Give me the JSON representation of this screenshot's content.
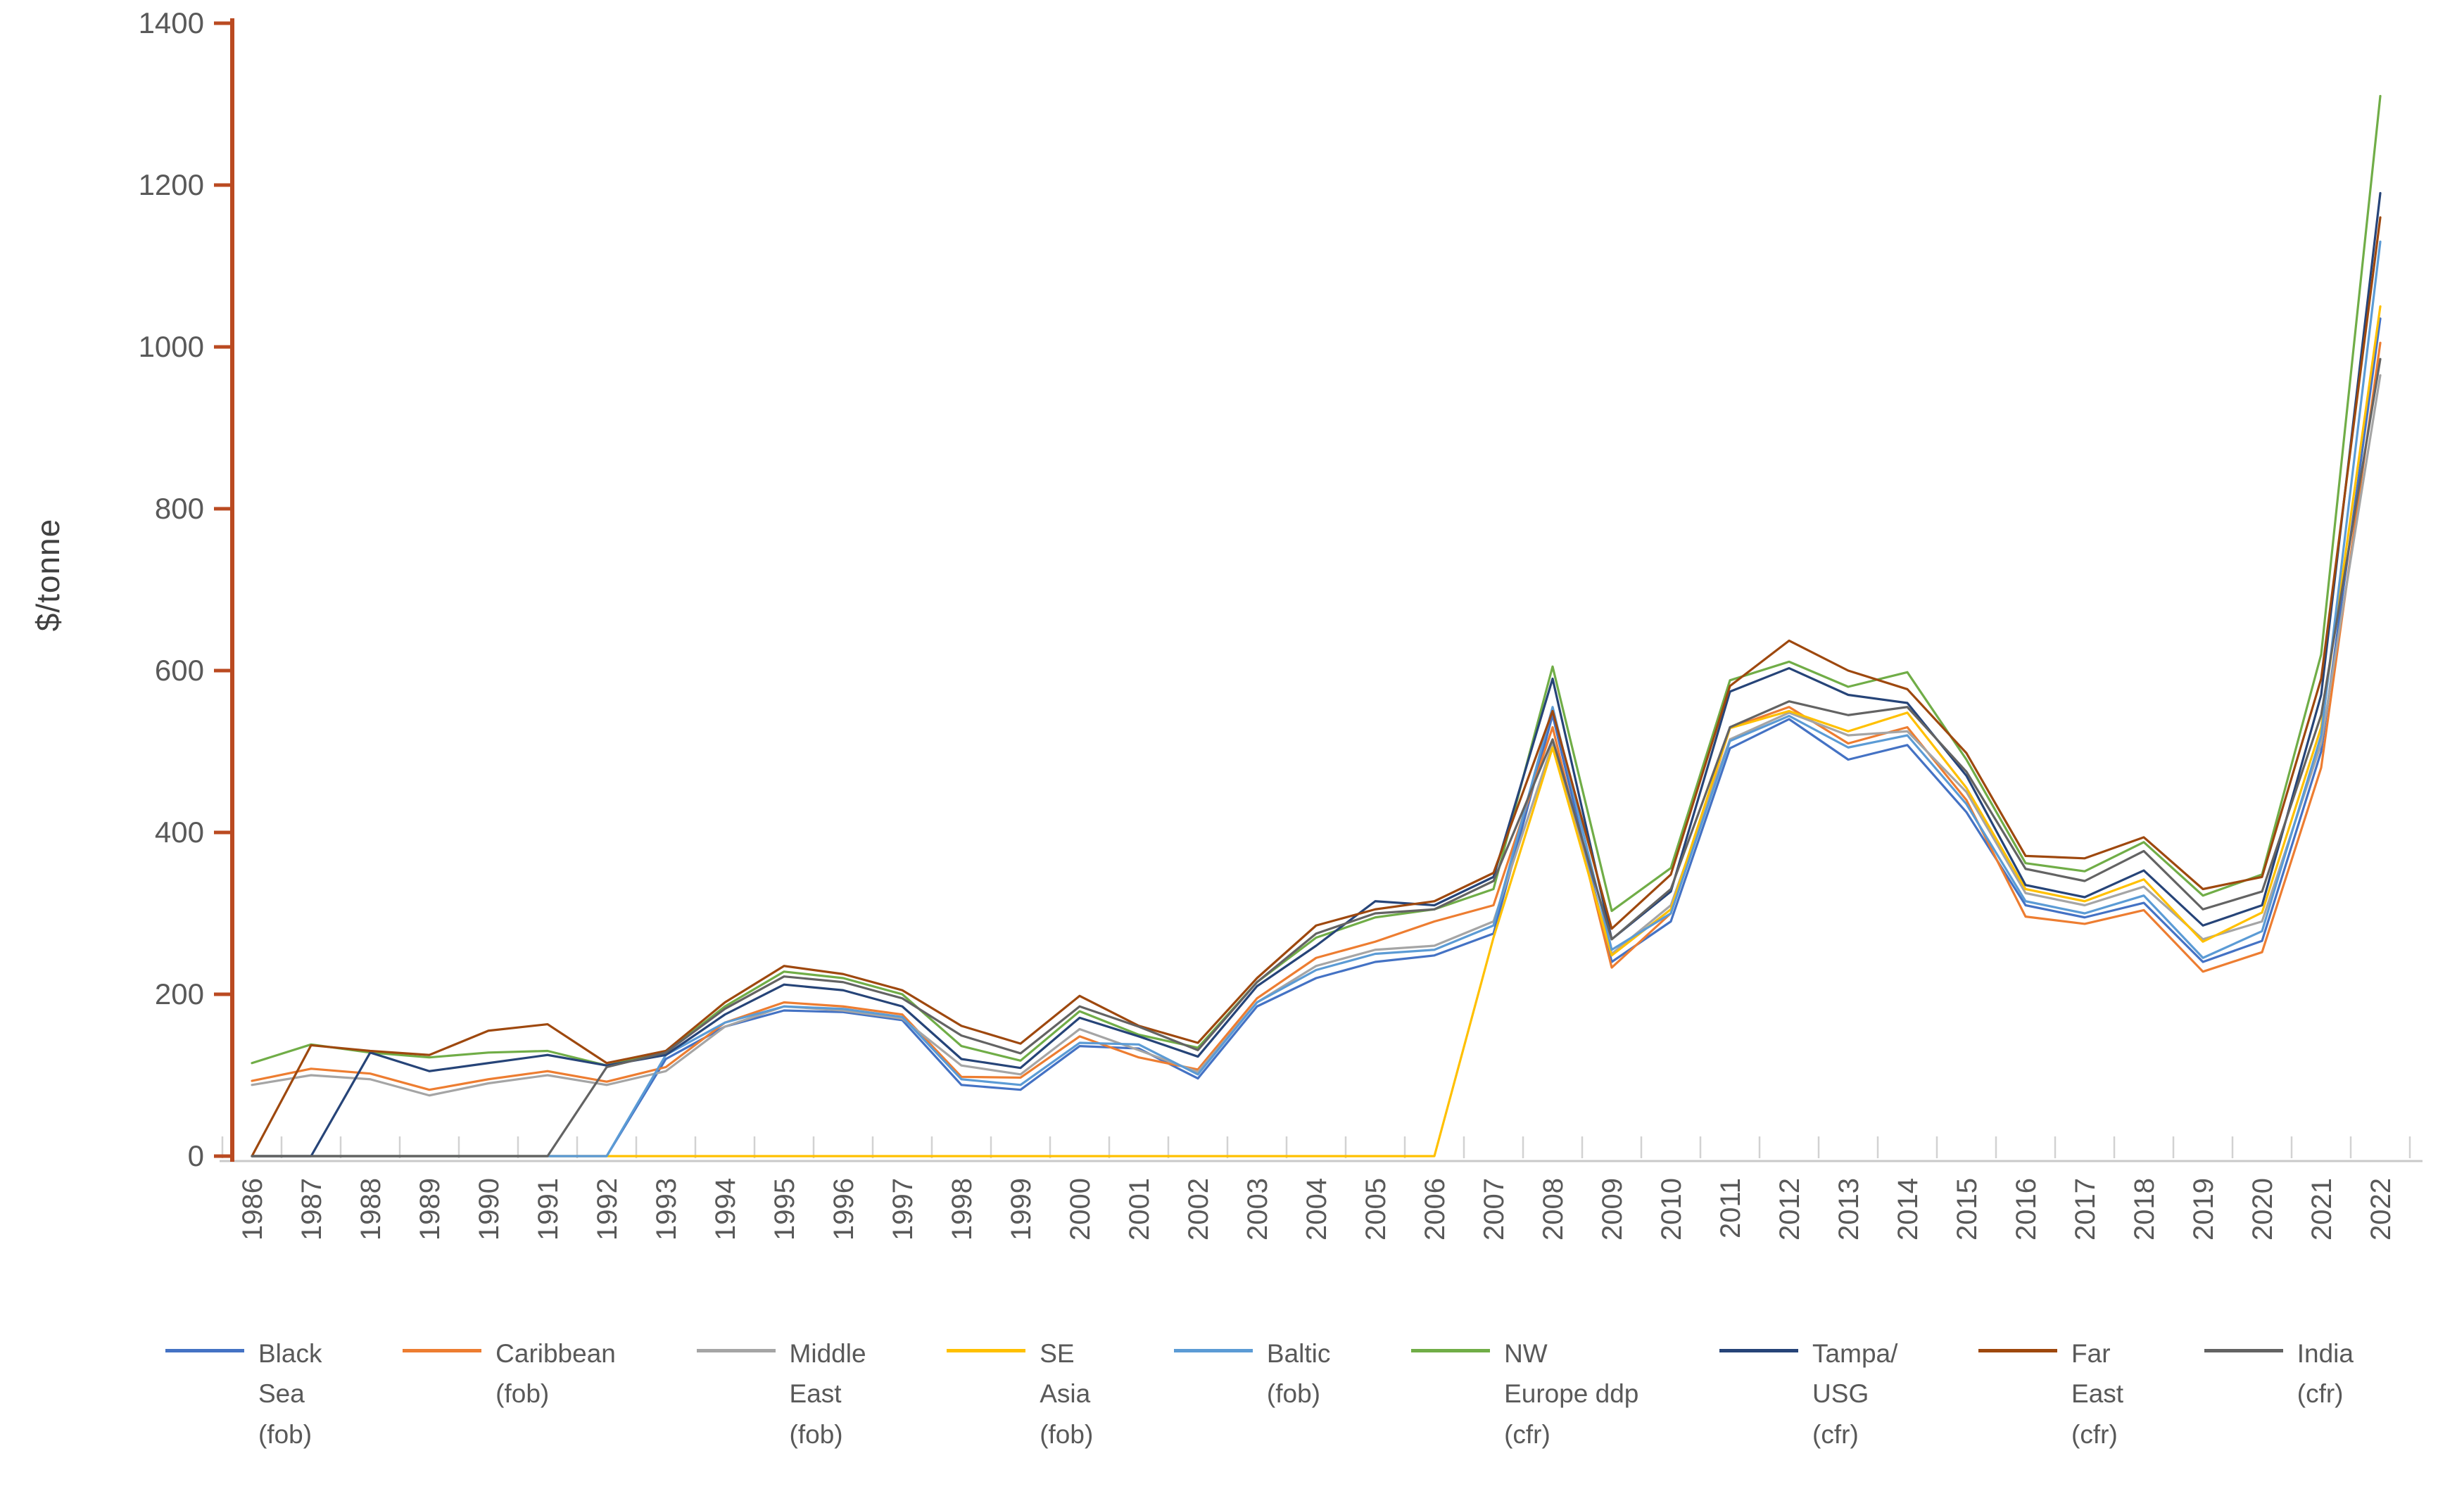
{
  "chart_data": {
    "type": "line",
    "title": "",
    "xlabel": "",
    "ylabel": "$/tonne",
    "ylim": [
      0,
      1400
    ],
    "ytick_interval": 200,
    "yticks": [
      0,
      200,
      400,
      600,
      800,
      1000,
      1200,
      1400
    ],
    "grid": false,
    "legend_position": "bottom",
    "axis_colors": {
      "y_axis": "#BA4A21",
      "x_axis": "#C9C9C9",
      "tick_label": "#595959"
    },
    "x": [
      1986,
      1987,
      1988,
      1989,
      1990,
      1991,
      1992,
      1993,
      1994,
      1995,
      1996,
      1997,
      1998,
      1999,
      2000,
      2001,
      2002,
      2003,
      2004,
      2005,
      2006,
      2007,
      2008,
      2009,
      2010,
      2011,
      2012,
      2013,
      2014,
      2015,
      2016,
      2017,
      2018,
      2019,
      2020,
      2021,
      2022
    ],
    "series": [
      {
        "name": "Black Sea (fob)",
        "legend_lines": [
          "Black",
          "Sea",
          "(fob)"
        ],
        "color": "#4472C4",
        "values": [
          0,
          0,
          0,
          0,
          0,
          0,
          0,
          120,
          160,
          180,
          178,
          168,
          88,
          82,
          136,
          133,
          96,
          185,
          220,
          240,
          248,
          275,
          545,
          240,
          290,
          504,
          540,
          490,
          508,
          425,
          310,
          295,
          313,
          240,
          266,
          500,
          1035
        ]
      },
      {
        "name": "Caribbean (fob)",
        "legend_lines": [
          "Caribbean",
          "(fob)"
        ],
        "color": "#ED7D31",
        "values": [
          93,
          108,
          102,
          82,
          95,
          105,
          92,
          110,
          165,
          190,
          185,
          175,
          98,
          97,
          148,
          122,
          107,
          195,
          245,
          265,
          290,
          310,
          530,
          233,
          300,
          529,
          555,
          510,
          530,
          440,
          296,
          287,
          304,
          228,
          252,
          480,
          1005
        ]
      },
      {
        "name": "Middle East (fob)",
        "legend_lines": [
          "Middle",
          "East",
          "(fob)"
        ],
        "color": "#A5A5A5",
        "values": [
          88,
          100,
          95,
          75,
          90,
          100,
          88,
          105,
          160,
          185,
          180,
          170,
          112,
          101,
          157,
          131,
          104,
          190,
          235,
          255,
          260,
          290,
          510,
          250,
          310,
          515,
          548,
          520,
          525,
          450,
          325,
          310,
          333,
          268,
          290,
          510,
          965
        ]
      },
      {
        "name": "SE Asia (fob)",
        "legend_lines": [
          "SE",
          "Asia",
          "(fob)"
        ],
        "color": "#FFC000",
        "values": [
          0,
          0,
          0,
          0,
          0,
          0,
          0,
          0,
          0,
          0,
          0,
          0,
          0,
          0,
          0,
          0,
          0,
          0,
          0,
          0,
          0,
          270,
          505,
          248,
          305,
          529,
          550,
          525,
          548,
          455,
          330,
          315,
          342,
          265,
          301,
          530,
          1050
        ]
      },
      {
        "name": "Baltic (fob)",
        "legend_lines": [
          "Baltic",
          "(fob)"
        ],
        "color": "#5B9BD5",
        "values": [
          0,
          0,
          0,
          0,
          0,
          0,
          0,
          125,
          165,
          185,
          182,
          172,
          95,
          88,
          140,
          138,
          101,
          190,
          230,
          250,
          255,
          285,
          555,
          255,
          300,
          513,
          544,
          505,
          520,
          435,
          315,
          300,
          322,
          245,
          278,
          520,
          1130
        ]
      },
      {
        "name": "NW Europe ddp (cfr)",
        "legend_lines": [
          "NW",
          "Europe ddp",
          "(cfr)"
        ],
        "color": "#70AD47",
        "values": [
          115,
          138,
          128,
          122,
          128,
          130,
          112,
          128,
          185,
          228,
          220,
          200,
          136,
          118,
          179,
          150,
          134,
          215,
          270,
          295,
          305,
          330,
          605,
          303,
          356,
          588,
          611,
          580,
          598,
          490,
          362,
          352,
          388,
          322,
          348,
          620,
          1310
        ]
      },
      {
        "name": "Tampa/USG (cfr)",
        "legend_lines": [
          "Tampa/",
          "USG",
          "(cfr)"
        ],
        "color": "#264478",
        "values": [
          0,
          0,
          128,
          105,
          115,
          125,
          112,
          125,
          175,
          212,
          205,
          185,
          120,
          109,
          171,
          148,
          123,
          210,
          260,
          315,
          310,
          345,
          590,
          268,
          327,
          574,
          603,
          570,
          560,
          470,
          335,
          320,
          353,
          285,
          310,
          570,
          1190
        ]
      },
      {
        "name": "Far East (cfr)",
        "legend_lines": [
          "Far",
          "East",
          "(cfr)"
        ],
        "color": "#9E480E",
        "values": [
          0,
          137,
          130,
          125,
          155,
          163,
          115,
          130,
          190,
          235,
          225,
          205,
          161,
          139,
          198,
          161,
          140,
          220,
          285,
          305,
          315,
          350,
          550,
          281,
          348,
          581,
          637,
          600,
          577,
          498,
          371,
          368,
          394,
          330,
          345,
          590,
          1160
        ]
      },
      {
        "name": "India (cfr)",
        "legend_lines": [
          "India",
          "(cfr)"
        ],
        "color": "#636363",
        "values": [
          0,
          0,
          0,
          0,
          0,
          0,
          110,
          128,
          182,
          222,
          215,
          195,
          149,
          127,
          185,
          160,
          131,
          215,
          275,
          300,
          305,
          340,
          515,
          268,
          330,
          530,
          562,
          545,
          555,
          475,
          355,
          340,
          377,
          305,
          327,
          545,
          985
        ]
      }
    ]
  }
}
